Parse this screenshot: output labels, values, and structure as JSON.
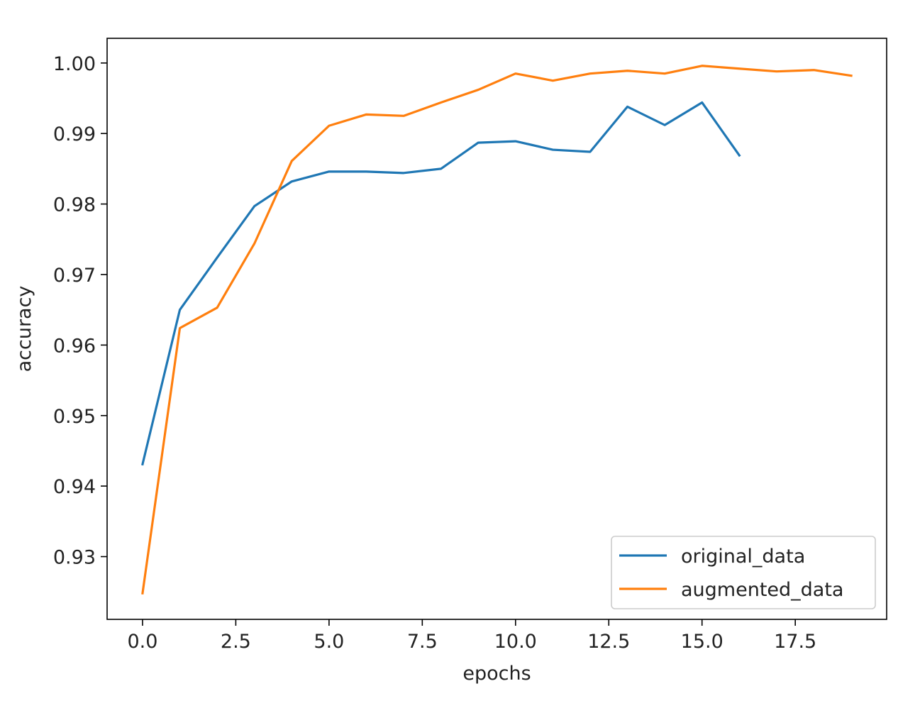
{
  "chart_data": {
    "type": "line",
    "title": "",
    "xlabel": "epochs",
    "ylabel": "accuracy",
    "xlim": [
      -0.95,
      19.95
    ],
    "ylim": [
      0.9211,
      1.0035
    ],
    "xticks": [
      0.0,
      2.5,
      5.0,
      7.5,
      10.0,
      12.5,
      15.0,
      17.5
    ],
    "xtick_labels": [
      "0.0",
      "2.5",
      "5.0",
      "7.5",
      "10.0",
      "12.5",
      "15.0",
      "17.5"
    ],
    "yticks": [
      0.93,
      0.94,
      0.95,
      0.96,
      0.97,
      0.98,
      0.99,
      1.0
    ],
    "ytick_labels": [
      "0.93",
      "0.94",
      "0.95",
      "0.96",
      "0.97",
      "0.98",
      "0.99",
      "1.00"
    ],
    "grid": false,
    "legend_position": "lower-right",
    "series": [
      {
        "name": "original_data",
        "color": "#1f77b4",
        "x": [
          0,
          1,
          2,
          3,
          4,
          5,
          6,
          7,
          8,
          9,
          10,
          11,
          12,
          13,
          14,
          15,
          16
        ],
        "y": [
          0.9431,
          0.965,
          0.9724,
          0.9797,
          0.9832,
          0.9846,
          0.9846,
          0.9844,
          0.985,
          0.9887,
          0.9889,
          0.9877,
          0.9874,
          0.9938,
          0.9912,
          0.9944,
          0.9869
        ]
      },
      {
        "name": "augmented_data",
        "color": "#ff7f0e",
        "x": [
          0,
          1,
          2,
          3,
          4,
          5,
          6,
          7,
          8,
          9,
          10,
          11,
          12,
          13,
          14,
          15,
          16,
          17,
          18,
          19
        ],
        "y": [
          0.9248,
          0.9624,
          0.9653,
          0.9744,
          0.9861,
          0.9911,
          0.9927,
          0.9925,
          0.9944,
          0.9962,
          0.9985,
          0.9975,
          0.9985,
          0.9989,
          0.9985,
          0.9996,
          0.9992,
          0.9988,
          0.999,
          0.9982
        ]
      }
    ]
  }
}
